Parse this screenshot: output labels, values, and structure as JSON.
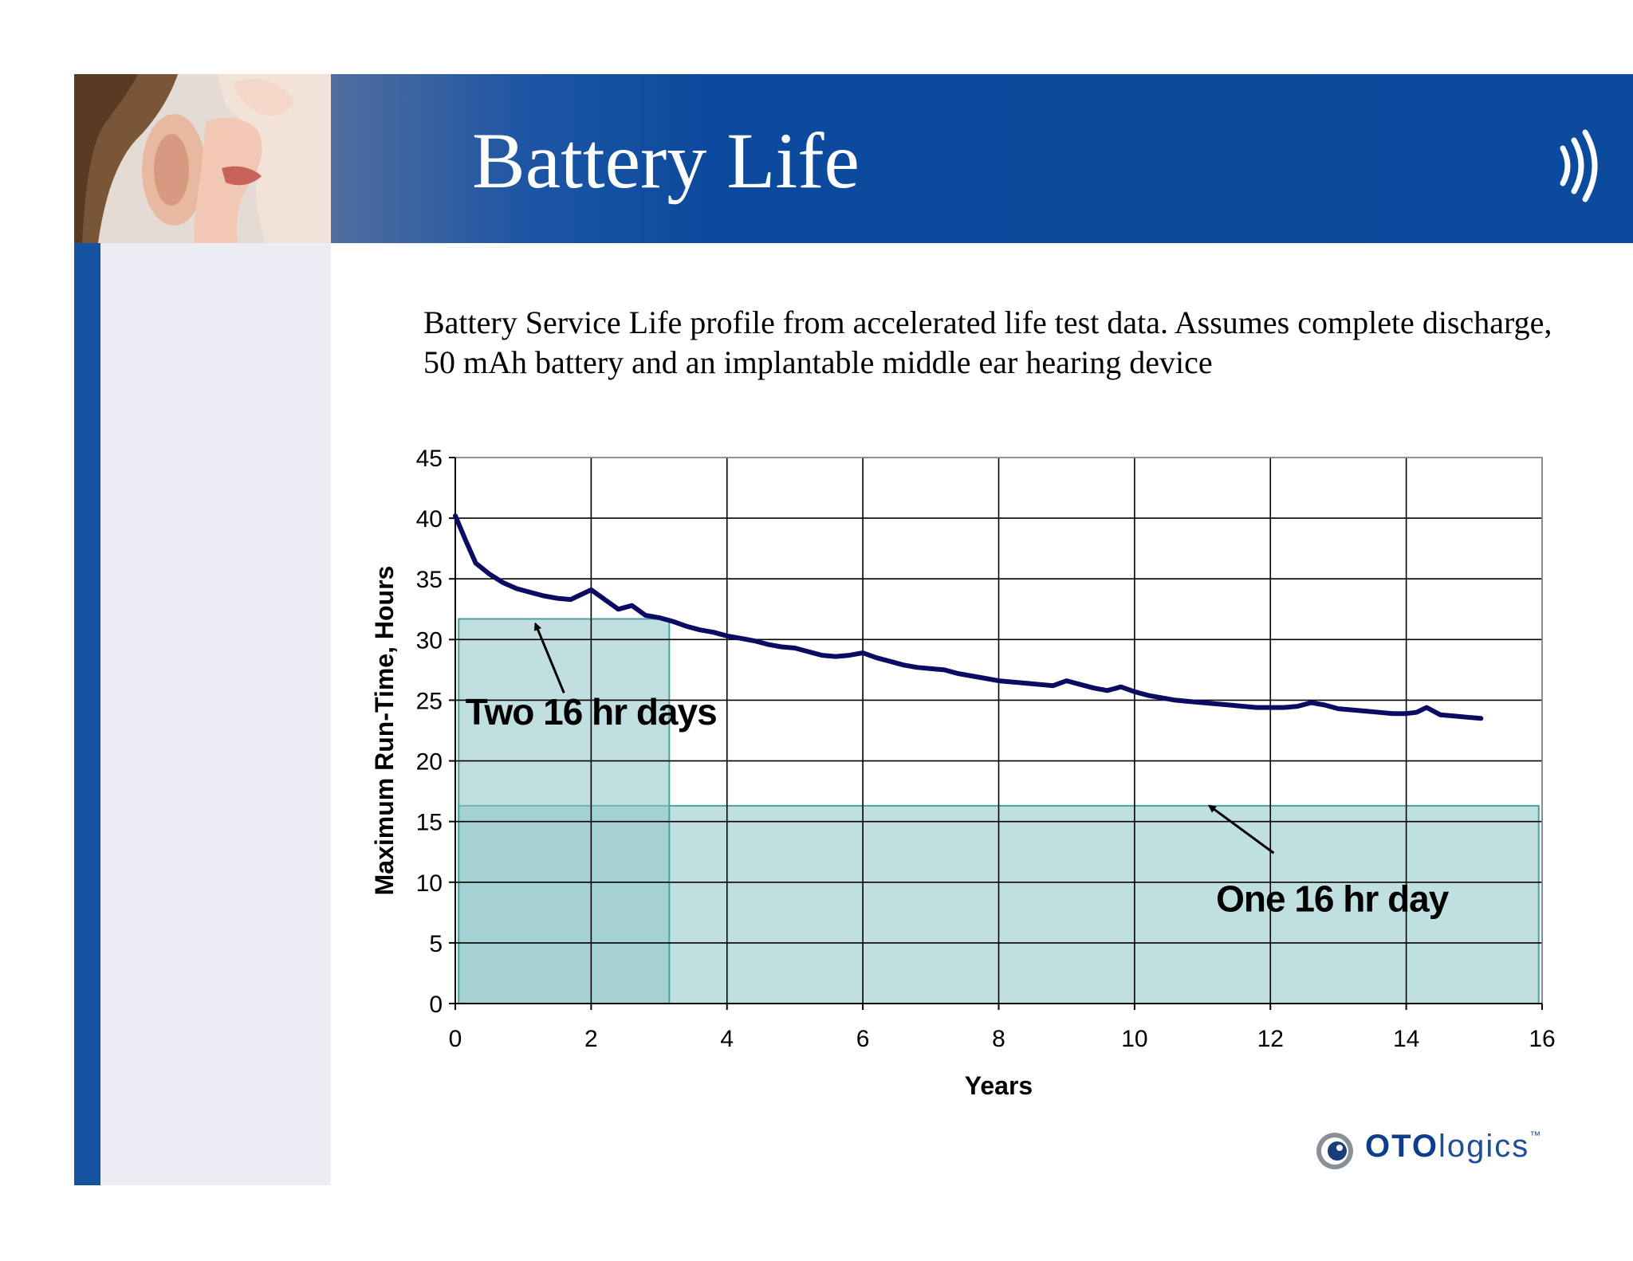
{
  "header": {
    "title": "Battery Life"
  },
  "description": "Battery Service Life profile from accelerated life test data. Assumes complete discharge, 50 mAh battery and an implantable middle ear hearing device",
  "logo": {
    "oto": "OTO",
    "logics": "logics",
    "tm": "™"
  },
  "colors": {
    "header_blue": "#0b4a9c",
    "line": "#0b0b63",
    "region_fill": "#8ec5c6",
    "region_edge": "#4aa3a0"
  },
  "icons": {
    "header_right": "sound-waves-icon",
    "header_left": "ear-photo",
    "logo": "eye-logo-icon"
  },
  "chart_data": {
    "type": "line",
    "xlabel": "Years",
    "ylabel": "Maximum Run-Time, Hours",
    "xlim": [
      0,
      16
    ],
    "ylim": [
      0,
      45
    ],
    "xticks": [
      0,
      2,
      4,
      6,
      8,
      10,
      12,
      14,
      16
    ],
    "yticks": [
      0,
      5,
      10,
      15,
      20,
      25,
      30,
      35,
      40,
      45
    ],
    "grid": true,
    "series": [
      {
        "x": [
          0,
          0.15,
          0.3,
          0.5,
          0.7,
          0.9,
          1.1,
          1.3,
          1.5,
          1.7,
          1.85,
          2.0,
          2.15,
          2.4,
          2.6,
          2.8,
          3.0,
          3.2,
          3.4,
          3.6,
          3.8,
          4.0,
          4.2,
          4.4,
          4.6,
          4.8,
          5.0,
          5.2,
          5.4,
          5.6,
          5.8,
          6.0,
          6.2,
          6.4,
          6.6,
          6.8,
          7.0,
          7.2,
          7.4,
          7.6,
          7.8,
          8.0,
          8.2,
          8.4,
          8.6,
          8.8,
          9.0,
          9.2,
          9.4,
          9.6,
          9.8,
          10.0,
          10.2,
          10.4,
          10.6,
          10.8,
          11.0,
          11.2,
          11.4,
          11.6,
          11.8,
          12.0,
          12.2,
          12.4,
          12.6,
          12.8,
          13.0,
          13.2,
          13.4,
          13.6,
          13.8,
          14.0,
          14.15,
          14.3,
          14.5,
          14.7,
          14.9,
          15.1
        ],
        "y": [
          40.2,
          38.2,
          36.3,
          35.4,
          34.7,
          34.2,
          33.9,
          33.6,
          33.4,
          33.3,
          33.7,
          34.1,
          33.5,
          32.5,
          32.8,
          32.0,
          31.8,
          31.5,
          31.1,
          30.8,
          30.6,
          30.3,
          30.1,
          29.9,
          29.6,
          29.4,
          29.3,
          29.0,
          28.7,
          28.6,
          28.7,
          28.9,
          28.5,
          28.2,
          27.9,
          27.7,
          27.6,
          27.5,
          27.2,
          27.0,
          26.8,
          26.6,
          26.5,
          26.4,
          26.3,
          26.2,
          26.6,
          26.3,
          26.0,
          25.8,
          26.1,
          25.7,
          25.4,
          25.2,
          25.0,
          24.9,
          24.8,
          24.7,
          24.6,
          24.5,
          24.4,
          24.4,
          24.4,
          24.5,
          24.8,
          24.6,
          24.3,
          24.2,
          24.1,
          24.0,
          23.9,
          23.9,
          24.0,
          24.4,
          23.8,
          23.7,
          23.6,
          23.5
        ]
      }
    ],
    "regions": [
      {
        "label": "One 16 hr day",
        "x0": 0.05,
        "x1": 15.95,
        "y0": 0,
        "y1": 16.3
      },
      {
        "label": "Two 16 hr days",
        "x0": 0.05,
        "x1": 3.15,
        "y0": 0,
        "y1": 31.7
      }
    ],
    "annotations": [
      {
        "text": "Two 16 hr days",
        "x": 0.15,
        "y": 23.0,
        "arrow_from": [
          1.6,
          25.6
        ],
        "arrow_to": [
          1.18,
          31.3
        ]
      },
      {
        "text": "One 16 hr day",
        "x": 11.2,
        "y": 7.6,
        "arrow_from": [
          12.05,
          12.4
        ],
        "arrow_to": [
          11.1,
          16.3
        ]
      }
    ]
  }
}
